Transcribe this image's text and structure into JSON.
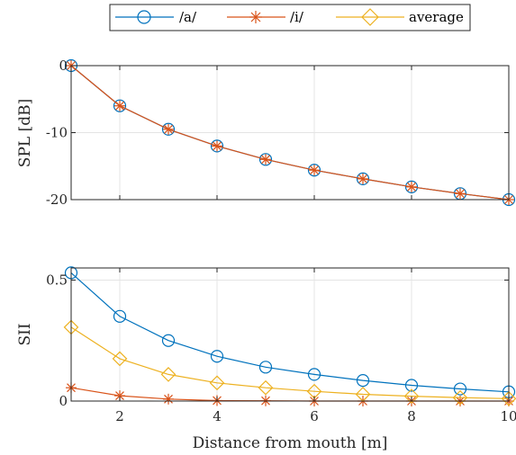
{
  "chart_data": [
    {
      "type": "line",
      "title": "",
      "xlabel": "",
      "ylabel": "SPL [dB]",
      "xlim": [
        1,
        10
      ],
      "ylim": [
        -20,
        0
      ],
      "xticks": [
        2,
        4,
        6,
        8,
        10
      ],
      "yticks": [
        0,
        -10,
        -20
      ],
      "ytick_labels": [
        "0",
        "-10",
        "-20"
      ],
      "xtick_labels": [],
      "grid": true,
      "x": [
        1,
        2,
        3,
        4,
        5,
        6,
        7,
        8,
        9,
        10
      ],
      "series": [
        {
          "name": "/a/",
          "color": "#0072BD",
          "marker": "circle",
          "values": [
            0,
            -6.0,
            -9.5,
            -12.0,
            -14.0,
            -15.6,
            -16.9,
            -18.1,
            -19.1,
            -20.0
          ]
        },
        {
          "name": "/i/",
          "color": "#D95319",
          "marker": "asterisk",
          "values": [
            0,
            -6.0,
            -9.5,
            -12.0,
            -14.0,
            -15.6,
            -16.9,
            -18.1,
            -19.1,
            -20.0
          ]
        }
      ]
    },
    {
      "type": "line",
      "title": "",
      "xlabel": "Distance from mouth [m]",
      "ylabel": "SII",
      "xlim": [
        1,
        10
      ],
      "ylim": [
        0,
        0.55
      ],
      "xticks": [
        2,
        4,
        6,
        8,
        10
      ],
      "xtick_labels": [
        "2",
        "4",
        "6",
        "8",
        "10"
      ],
      "yticks": [
        0,
        0.5
      ],
      "ytick_labels": [
        "0",
        "0.5"
      ],
      "grid": true,
      "x": [
        1,
        2,
        3,
        4,
        5,
        6,
        7,
        8,
        9,
        10
      ],
      "series": [
        {
          "name": "/a/",
          "color": "#0072BD",
          "marker": "circle",
          "values": [
            0.53,
            0.35,
            0.25,
            0.185,
            0.14,
            0.11,
            0.085,
            0.065,
            0.05,
            0.038
          ]
        },
        {
          "name": "/i/",
          "color": "#D95319",
          "marker": "asterisk",
          "values": [
            0.055,
            0.022,
            0.008,
            0.002,
            0.001,
            0.0,
            0.0,
            0.0,
            0.0,
            0.0
          ]
        },
        {
          "name": "average",
          "color": "#EDB120",
          "marker": "diamond",
          "values": [
            0.305,
            0.175,
            0.11,
            0.075,
            0.055,
            0.04,
            0.028,
            0.02,
            0.014,
            0.01
          ]
        }
      ]
    }
  ],
  "legend": {
    "placement": "top-center",
    "entries": [
      {
        "label": "/a/",
        "color": "#0072BD",
        "marker": "circle"
      },
      {
        "label": "/i/",
        "color": "#D95319",
        "marker": "asterisk"
      },
      {
        "label": "average",
        "color": "#EDB120",
        "marker": "diamond"
      }
    ]
  }
}
